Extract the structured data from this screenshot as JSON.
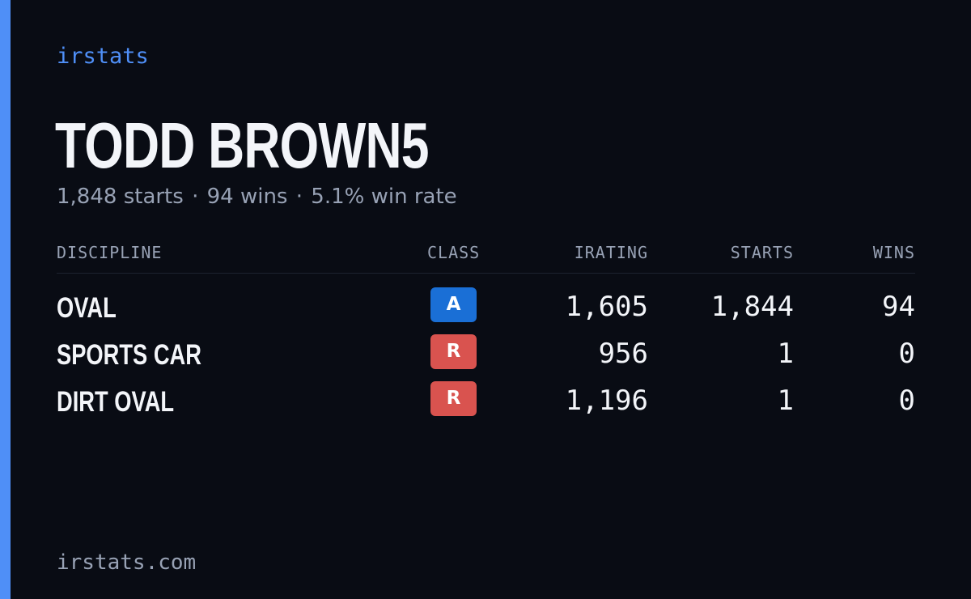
{
  "brand": "irstats",
  "driver": {
    "name": "TODD BROWN5"
  },
  "summary": {
    "starts": "1,848 starts",
    "wins": "94 wins",
    "win_rate": "5.1% win rate",
    "separator": "·"
  },
  "table": {
    "headers": {
      "discipline": "DISCIPLINE",
      "class": "CLASS",
      "irating": "IRATING",
      "starts": "STARTS",
      "wins": "WINS"
    },
    "rows": [
      {
        "discipline": "OVAL",
        "class": "A",
        "class_color": "#1a6fd6",
        "irating": "1,605",
        "starts": "1,844",
        "wins": "94"
      },
      {
        "discipline": "SPORTS CAR",
        "class": "R",
        "class_color": "#d9534f",
        "irating": "956",
        "starts": "1",
        "wins": "0"
      },
      {
        "discipline": "DIRT OVAL",
        "class": "R",
        "class_color": "#d9534f",
        "irating": "1,196",
        "starts": "1",
        "wins": "0"
      }
    ]
  },
  "footer": {
    "site": "irstats.com"
  },
  "colors": {
    "background": "#090c14",
    "accent": "#4f8ff7",
    "muted_text": "#98a2b5",
    "primary_text": "#f3f5f9"
  }
}
